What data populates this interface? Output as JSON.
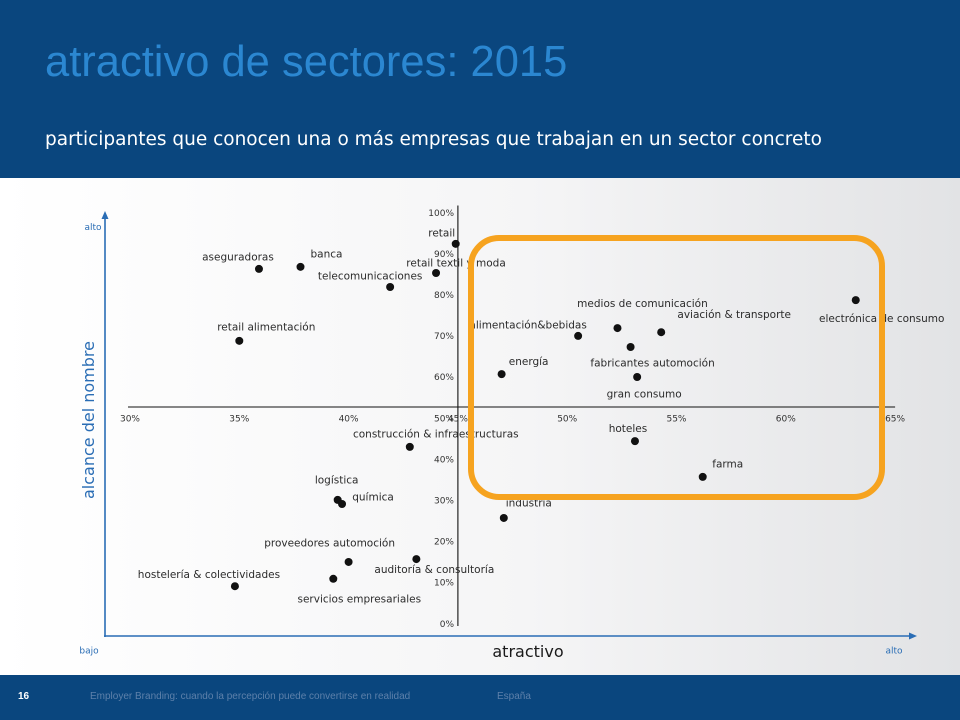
{
  "header": {
    "title": "atractivo de sectores: 2015",
    "subtitle": "participantes que conocen una o más empresas que trabajan en un sector concreto"
  },
  "outer_axes": {
    "y_high_label": "alto",
    "y_low_label": "bajo",
    "x_high_label": "alto"
  },
  "chart_data": {
    "type": "scatter",
    "xlabel": "atractivo",
    "ylabel": "alcance del nombre",
    "xlim": [
      30,
      65
    ],
    "ylim": [
      0,
      100
    ],
    "x_ticks": [
      30,
      35,
      40,
      45,
      50,
      55,
      60,
      65
    ],
    "x_tick_labels": [
      "30%",
      "35%",
      "40%",
      "45%",
      "50%",
      "55%",
      "60%",
      "65%"
    ],
    "y_ticks": [
      100,
      90,
      80,
      70,
      60,
      50,
      40,
      30,
      20,
      10,
      0
    ],
    "y_tick_labels": [
      "100%",
      "90%",
      "80%",
      "70%",
      "60%",
      "50%",
      "40%",
      "30%",
      "20%",
      "10%",
      "0%"
    ],
    "x_axis_crosses_at_y": 50,
    "y_axis_crosses_at_x": 45,
    "grid": false,
    "legend": "none",
    "points": [
      {
        "label": "retail",
        "x": 44.9,
        "y": 89.7
      },
      {
        "label": "retail textil y moda",
        "x": 44.0,
        "y": 82.6
      },
      {
        "label": "telecomunicaciones",
        "x": 41.9,
        "y": 79.2
      },
      {
        "label": "banca",
        "x": 37.8,
        "y": 84.1
      },
      {
        "label": "aseguradoras",
        "x": 35.9,
        "y": 83.6
      },
      {
        "label": "retail alimentación",
        "x": 35.0,
        "y": 66.1
      },
      {
        "label": "alimentación&bebidas",
        "x": 50.5,
        "y": 67.3
      },
      {
        "label": "medios de comunicación",
        "x": 52.3,
        "y": 69.2
      },
      {
        "label": "aviación & transporte",
        "x": 54.3,
        "y": 68.2
      },
      {
        "label": "electrónica de consumo",
        "x": 63.2,
        "y": 76.0
      },
      {
        "label": "fabricantes automoción",
        "x": 52.9,
        "y": 64.6
      },
      {
        "label": "energía",
        "x": 47.0,
        "y": 58.0
      },
      {
        "label": "gran consumo",
        "x": 53.2,
        "y": 57.3
      },
      {
        "label": "hoteles",
        "x": 53.1,
        "y": 41.7
      },
      {
        "label": "farma",
        "x": 56.2,
        "y": 33.0
      },
      {
        "label": "industria",
        "x": 47.1,
        "y": 23.0
      },
      {
        "label": "construcción & infraestructuras",
        "x": 42.8,
        "y": 40.3
      },
      {
        "label": "logística",
        "x": 39.5,
        "y": 27.4
      },
      {
        "label": "química",
        "x": 39.7,
        "y": 26.4
      },
      {
        "label": "proveedores automoción",
        "x": 40.0,
        "y": 12.3
      },
      {
        "label": "auditoría & consultoría",
        "x": 43.1,
        "y": 13.0
      },
      {
        "label": "servicios empresariales",
        "x": 39.3,
        "y": 8.2
      },
      {
        "label": "hostelería & colectividades",
        "x": 34.8,
        "y": 6.4
      }
    ]
  },
  "footer": {
    "page_number": "16",
    "text": "Employer Branding: cuando la percepción puede convertirse en realidad",
    "country": "España"
  },
  "colors": {
    "header_bg": "#0a467e",
    "title": "#2b87d1",
    "axis_blue": "#2a6db5",
    "highlight": "#f6a31f",
    "point": "#111111"
  }
}
